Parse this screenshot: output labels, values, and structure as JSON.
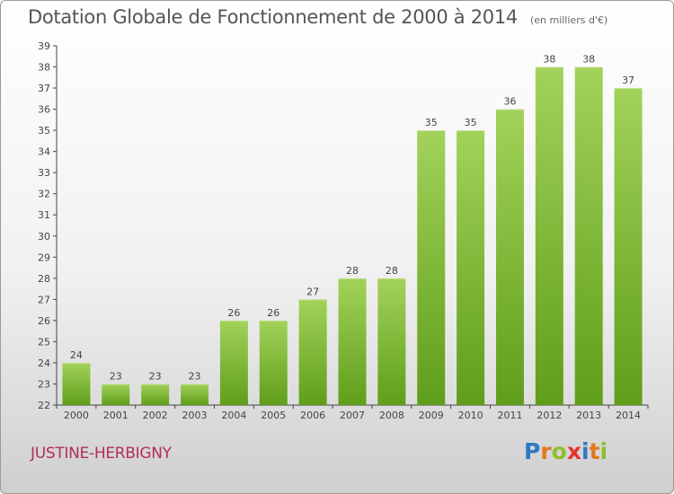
{
  "title": "Dotation Globale de Fonctionnement de 2000 à 2014",
  "subtitle": "(en milliers d'€)",
  "commune": "JUSTINE-HERBIGNY",
  "logo": {
    "letters": [
      {
        "char": "P",
        "color": "#2f78c4"
      },
      {
        "char": "r",
        "color": "#e4781c"
      },
      {
        "char": "o",
        "color": "#8cbe2e"
      },
      {
        "char": "x",
        "color": "#e5332a"
      },
      {
        "char": "i",
        "color": "#2f78c4"
      },
      {
        "char": "t",
        "color": "#e4781c"
      },
      {
        "char": "i",
        "color": "#8cbe2e"
      }
    ]
  },
  "chart_data": {
    "type": "bar",
    "categories": [
      "2000",
      "2001",
      "2002",
      "2003",
      "2004",
      "2005",
      "2006",
      "2007",
      "2008",
      "2009",
      "2010",
      "2011",
      "2012",
      "2013",
      "2014"
    ],
    "values": [
      24,
      23,
      23,
      23,
      26,
      26,
      27,
      28,
      28,
      35,
      35,
      36,
      38,
      38,
      37
    ],
    "ylim": [
      22,
      39
    ],
    "yticks": [
      22,
      23,
      24,
      25,
      26,
      27,
      28,
      29,
      30,
      31,
      32,
      33,
      34,
      35,
      36,
      37,
      38,
      39
    ],
    "grid": false,
    "bar_color_top": "#a2d25a",
    "bar_color_bottom": "#5f9e1a"
  }
}
